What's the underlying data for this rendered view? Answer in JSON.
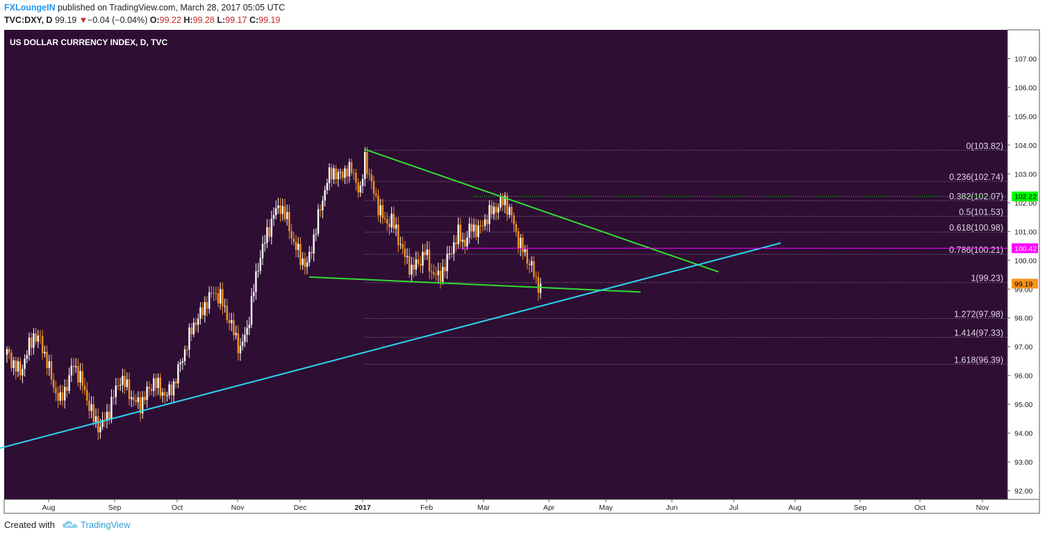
{
  "header": {
    "author": "FXLoungeIN",
    "published": "published on TradingView.com, March 28, 2017 05:05 UTC",
    "symbol": "TVC:DXY, D",
    "last": "99.19",
    "change_arrow": "▼",
    "change": "−0.04 (−0.04%)",
    "o_label": "O:",
    "o_value": "99.22",
    "h_label": "H:",
    "h_value": "99.28",
    "l_label": "L:",
    "l_value": "99.17",
    "c_label": "C:",
    "c_value": "99.19"
  },
  "footer": {
    "created_with": "Created with",
    "brand": "TradingView",
    "logo_icon": "tradingview-cloud-icon"
  },
  "colors": {
    "background": "#2e0e33",
    "up_candle": "#ffffff",
    "down_candle": "#f7931e",
    "trendline_green": "#33dd33",
    "trendline_cyan": "#2fd3f0",
    "horizontal_magenta": "#ff00ff",
    "horizontal_green": "#00ff00",
    "fib_lines": "#9a8aa0",
    "axis_text": "#222222"
  },
  "chart_data": {
    "type": "candlestick",
    "title": "US DOLLAR CURRENCY INDEX, D, TVC",
    "ylim": [
      91.7,
      108.0
    ],
    "y_ticks": [
      "92.00",
      "93.00",
      "94.00",
      "95.00",
      "96.00",
      "97.00",
      "98.00",
      "99.00",
      "100.00",
      "101.00",
      "102.00",
      "103.00",
      "104.00",
      "105.00",
      "106.00",
      "107.00"
    ],
    "x_ticks": [
      "Aug",
      "Sep",
      "Oct",
      "Nov",
      "Dec",
      "2017",
      "Feb",
      "Mar",
      "Apr",
      "May",
      "Jun",
      "Jul",
      "Aug",
      "Sep",
      "Oct",
      "Nov"
    ],
    "price_points": [
      [
        0,
        96.8
      ],
      [
        3,
        96.4
      ],
      [
        6,
        96.1
      ],
      [
        9,
        96.8
      ],
      [
        12,
        97.4
      ],
      [
        15,
        97.2
      ],
      [
        18,
        96.5
      ],
      [
        21,
        95.6
      ],
      [
        24,
        95.1
      ],
      [
        27,
        95.7
      ],
      [
        30,
        96.4
      ],
      [
        33,
        95.9
      ],
      [
        36,
        95.2
      ],
      [
        39,
        94.5
      ],
      [
        42,
        94.2
      ],
      [
        45,
        94.6
      ],
      [
        48,
        95.3
      ],
      [
        51,
        95.9
      ],
      [
        54,
        95.6
      ],
      [
        57,
        95.1
      ],
      [
        60,
        95.0
      ],
      [
        63,
        95.4
      ],
      [
        66,
        95.8
      ],
      [
        69,
        95.5
      ],
      [
        72,
        95.3
      ],
      [
        75,
        95.7
      ],
      [
        78,
        96.4
      ],
      [
        81,
        97.1
      ],
      [
        84,
        97.8
      ],
      [
        87,
        98.1
      ],
      [
        90,
        98.6
      ],
      [
        93,
        98.9
      ],
      [
        96,
        98.7
      ],
      [
        99,
        98.1
      ],
      [
        102,
        97.5
      ],
      [
        105,
        96.9
      ],
      [
        108,
        97.6
      ],
      [
        111,
        99.0
      ],
      [
        114,
        100.2
      ],
      [
        117,
        100.9
      ],
      [
        120,
        101.6
      ],
      [
        123,
        101.9
      ],
      [
        126,
        101.4
      ],
      [
        129,
        100.6
      ],
      [
        132,
        100.1
      ],
      [
        135,
        99.8
      ],
      [
        138,
        100.8
      ],
      [
        141,
        101.8
      ],
      [
        144,
        102.8
      ],
      [
        147,
        103.1
      ],
      [
        150,
        102.9
      ],
      [
        153,
        103.2
      ],
      [
        156,
        103.0
      ],
      [
        159,
        102.3
      ],
      [
        161,
        103.6
      ],
      [
        164,
        102.6
      ],
      [
        167,
        101.9
      ],
      [
        170,
        101.3
      ],
      [
        173,
        101.4
      ],
      [
        176,
        100.8
      ],
      [
        179,
        100.1
      ],
      [
        182,
        99.7
      ],
      [
        185,
        99.9
      ],
      [
        188,
        100.3
      ],
      [
        191,
        99.6
      ],
      [
        194,
        99.4
      ],
      [
        197,
        99.8
      ],
      [
        200,
        100.4
      ],
      [
        203,
        100.9
      ],
      [
        206,
        100.6
      ],
      [
        209,
        101.2
      ],
      [
        212,
        101.0
      ],
      [
        215,
        101.4
      ],
      [
        218,
        101.7
      ],
      [
        221,
        101.9
      ],
      [
        224,
        102.1
      ],
      [
        227,
        101.5
      ],
      [
        230,
        100.7
      ],
      [
        233,
        100.2
      ],
      [
        236,
        99.8
      ],
      [
        238,
        99.2
      ],
      [
        240,
        99.19
      ]
    ],
    "trendlines": [
      {
        "name": "upper-green-trendline",
        "color": "#33dd33",
        "from": [
          161,
          103.85
        ],
        "to": [
          320,
          99.6
        ]
      },
      {
        "name": "lower-green-trendline",
        "color": "#33dd33",
        "from": [
          136,
          99.42
        ],
        "to": [
          285,
          98.9
        ]
      },
      {
        "name": "cyan-support-trendline",
        "color": "#2fd3f0",
        "from": [
          -12,
          93.3
        ],
        "to": [
          348,
          100.6
        ]
      }
    ],
    "horizontal_levels": [
      {
        "name": "magenta-level",
        "value": 100.42,
        "label": "100.42",
        "color": "#ff00ff",
        "from_x": 202
      },
      {
        "name": "green-level",
        "value": 102.22,
        "label": "102.22",
        "color": "#00ff00",
        "from_x": 210
      }
    ],
    "fib_levels": [
      {
        "label": "0(103.82)",
        "value": 103.82
      },
      {
        "label": "0.236(102.74)",
        "value": 102.74
      },
      {
        "label": "0.382(102.07)",
        "value": 102.07
      },
      {
        "label": "0.5(101.53)",
        "value": 101.53
      },
      {
        "label": "0.618(100.98)",
        "value": 100.98
      },
      {
        "label": "0.786(100.21)",
        "value": 100.21
      },
      {
        "label": "1(99.23)",
        "value": 99.23
      },
      {
        "label": "1.272(97.98)",
        "value": 97.98
      },
      {
        "label": "1.414(97.33)",
        "value": 97.33
      },
      {
        "label": "1.618(96.39)",
        "value": 96.39
      }
    ],
    "last_price": {
      "value": 99.19,
      "label": "99.19",
      "color": "#f7931e"
    },
    "fib_from_x": 161
  }
}
